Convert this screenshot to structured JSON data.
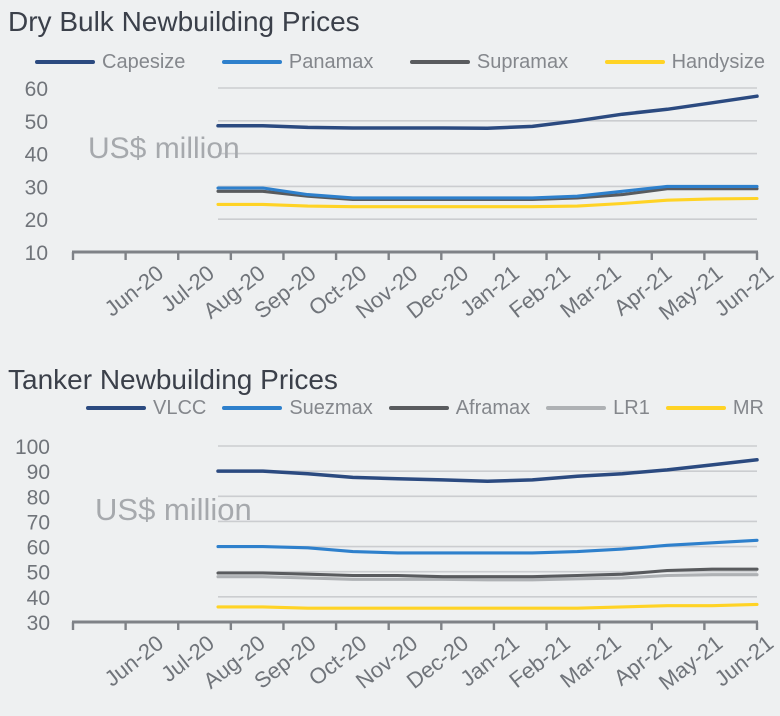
{
  "theme": {
    "page_background": "#eef0f1",
    "gridline_color": "#cbcdd0",
    "axis_color": "#7f8287",
    "tick_label_color": "#70747a",
    "watermark_color": "#a6a9ad",
    "title_color": "#3b404a",
    "legend_text_color": "#84878c"
  },
  "chart_data": [
    {
      "type": "line",
      "title": "Dry Bulk Newbuilding Prices",
      "watermark": "US$ million",
      "unit": "US$ million",
      "legend_position": "top",
      "grid": "horizontal",
      "categories": [
        "Jun-20",
        "Jul-20",
        "Aug-20",
        "Sep-20",
        "Oct-20",
        "Nov-20",
        "Dec-20",
        "Jan-21",
        "Feb-21",
        "Mar-21",
        "Apr-21",
        "May-21",
        "Jun-21"
      ],
      "ylim": [
        10,
        60
      ],
      "yticks": [
        10,
        20,
        30,
        40,
        50,
        60
      ],
      "series": [
        {
          "name": "Capesize",
          "color": "#2b4a80",
          "values": [
            48.5,
            48.5,
            48,
            47.8,
            47.8,
            47.8,
            47.7,
            48.3,
            50,
            52,
            53.5,
            55.5,
            57.5
          ]
        },
        {
          "name": "Panamax",
          "color": "#2e80cc",
          "values": [
            29.5,
            29.5,
            27.5,
            26.5,
            26.5,
            26.5,
            26.5,
            26.5,
            27,
            28.5,
            30,
            30,
            30
          ]
        },
        {
          "name": "Supramax",
          "color": "#595b5e",
          "values": [
            28.5,
            28.5,
            27,
            26,
            26,
            26,
            26,
            26,
            26.5,
            27.5,
            29.3,
            29.3,
            29.3
          ]
        },
        {
          "name": "Handysize",
          "color": "#ffd325",
          "values": [
            24.5,
            24.5,
            24,
            23.8,
            23.8,
            23.8,
            23.8,
            23.8,
            24,
            24.8,
            25.8,
            26.2,
            26.3
          ]
        }
      ]
    },
    {
      "type": "line",
      "title": "Tanker Newbuilding Prices",
      "watermark": "US$ million",
      "unit": "US$ million",
      "legend_position": "top",
      "grid": "horizontal",
      "categories": [
        "Jun-20",
        "Jul-20",
        "Aug-20",
        "Sep-20",
        "Oct-20",
        "Nov-20",
        "Dec-20",
        "Jan-21",
        "Feb-21",
        "Mar-21",
        "Apr-21",
        "May-21",
        "Jun-21"
      ],
      "ylim": [
        30,
        100
      ],
      "yticks": [
        30,
        40,
        50,
        60,
        70,
        80,
        90,
        100
      ],
      "series": [
        {
          "name": "VLCC",
          "color": "#2b4a80",
          "values": [
            90,
            90,
            89,
            87.5,
            87,
            86.5,
            86,
            86.5,
            88,
            89,
            90.5,
            92.5,
            94.5
          ]
        },
        {
          "name": "Suezmax",
          "color": "#2e80cc",
          "values": [
            60,
            60,
            59.5,
            58,
            57.5,
            57.5,
            57.5,
            57.5,
            58,
            59,
            60.5,
            61.5,
            62.5
          ]
        },
        {
          "name": "Aframax",
          "color": "#595b5e",
          "values": [
            49.5,
            49.5,
            49,
            48.5,
            48.5,
            48,
            48,
            48,
            48.5,
            49,
            50.5,
            51,
            51
          ]
        },
        {
          "name": "LR1",
          "color": "#aeb1b4",
          "values": [
            48,
            48,
            47.5,
            47,
            47,
            47,
            46.8,
            46.8,
            47.2,
            47.5,
            48.5,
            48.8,
            48.8
          ]
        },
        {
          "name": "MR",
          "color": "#ffd325",
          "values": [
            36,
            36,
            35.5,
            35.5,
            35.5,
            35.5,
            35.5,
            35.5,
            35.5,
            36,
            36.5,
            36.5,
            37
          ]
        }
      ]
    }
  ]
}
